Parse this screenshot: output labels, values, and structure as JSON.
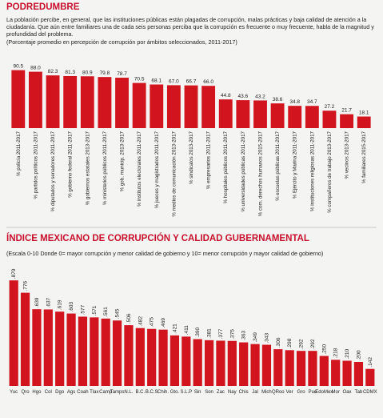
{
  "chart_data": [
    {
      "type": "bar",
      "title": "PODREDUMBRE",
      "description": "La población percibe, en general, que las instituciones públicas están plagadas de corrupción, malas prácticas y baja calidad de atención a la ciudadanía. Que aún entre familiares una de cada seis personas perciba que la corrupción es frecuente o muy frecuente, habla de la magnitud y profundidad del problema.",
      "subtitle": "(Porcentaje promedio en percepción de corrupción por ámbitos seleccionados, 2011-2017)",
      "categories": [
        "% policía 2011-2017",
        "% partidos políticos 2011-2017",
        "% diputados y senadores 2011-2017",
        "% gobierno federal 2011-2017",
        "% gobiernos estatales 2013-2017",
        "% ministerios públicos 2011-2017",
        "% gob. municip. 2013-2017",
        "% institutos electorales 2011-2017",
        "% jueces y magistrados 2011-2017",
        "% medios de comunicación 2013-2017",
        "% sindicatos 2013-2017",
        "% empresarios 2011-2017",
        "% hospitales públicos 2011-2017",
        "% universidades públicas 2011-2017",
        "% com. derechos humanos 2015-2017",
        "% escuelas públicas 2011-2017",
        "% Ejército y Marina 2011-2017",
        "% instituciones religiosas 2011-2017",
        "% compañeros de trabajo 2013-2017",
        "% vecinos 2013-2017",
        "% familiares 2015-2017"
      ],
      "values": [
        90.5,
        88.0,
        82.3,
        81.3,
        80.9,
        79.8,
        78.7,
        70.5,
        68.1,
        67.0,
        66.7,
        66.0,
        44.8,
        43.6,
        43.2,
        38.6,
        34.8,
        34.7,
        27.2,
        21.7,
        18.1
      ],
      "value_labels": [
        "90.5",
        "88.0",
        "82.3",
        "81.3",
        "80.9",
        "79.8",
        "78.7",
        "70.5",
        "68.1",
        "67.0",
        "66.7",
        "66.0",
        "44.8",
        "43.6",
        "43.2",
        "38.6",
        "34.8",
        "34.7",
        "27.2",
        "21.7",
        "18.1"
      ],
      "color": "#d2141f",
      "ylim": [
        0,
        100
      ]
    },
    {
      "type": "bar",
      "title": "ÍNDICE MEXICANO DE CORRUPCIÓN Y CALIDAD GUBERNAMENTAL",
      "subtitle": "(Escala 0-10 Donde 0= mayor corrupción y menor calidad de gobierno y 10= menor corrupción y mayor calidad de gobierno)",
      "categories": [
        "Yuc",
        "Qro",
        "Hgo",
        "Col",
        "Dgo",
        "Ags",
        "Coah",
        "Tlax",
        "Camp",
        "Tamps",
        "N.L.",
        "B.C.",
        "B.C.S",
        "Chih.",
        "Gto.",
        "S.L.P",
        "Sin",
        "Son",
        "Zac",
        "Nay",
        "Chis",
        "Jal",
        "Mich",
        "QRoo",
        "Ver",
        "Gro",
        "Pue",
        "EdoMex",
        "Mor",
        "Oax",
        "Tab",
        "CDMX"
      ],
      "values": [
        0.879,
        0.776,
        0.639,
        0.637,
        0.619,
        0.603,
        0.577,
        0.571,
        0.561,
        0.545,
        0.506,
        0.482,
        0.475,
        0.469,
        0.421,
        0.411,
        0.39,
        0.381,
        0.377,
        0.375,
        0.363,
        0.349,
        0.343,
        0.306,
        0.298,
        0.292,
        0.292,
        0.25,
        0.218,
        0.21,
        0.2,
        0.142
      ],
      "value_labels": [
        ".879",
        ".776",
        ".639",
        ".637",
        ".619",
        ".603",
        ".577",
        ".571",
        ".561",
        ".545",
        ".506",
        ".482",
        ".475",
        ".469",
        ".421",
        ".411",
        ".390",
        ".381",
        ".377",
        ".375",
        ".363",
        ".349",
        ".343",
        ".306",
        ".298",
        ".292",
        ".292",
        ".250",
        ".218",
        ".210",
        ".200",
        ".142"
      ],
      "color": "#d2141f",
      "ylim": [
        0,
        1
      ]
    }
  ]
}
